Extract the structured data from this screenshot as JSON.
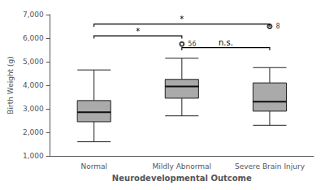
{
  "chart_data": {
    "type": "boxplot",
    "xlabel": "Neurodevelopmental Outcome",
    "ylabel": "Birth Weight (g)",
    "categories": [
      "Normal",
      "Mildly Abnormal",
      "Severe Brain Injury"
    ],
    "boxes": [
      {
        "whislo": 1600,
        "q1": 2450,
        "median": 2850,
        "q3": 3350,
        "whishi": 4650,
        "fliers": [],
        "flier_labels": []
      },
      {
        "whislo": 2700,
        "q1": 3450,
        "median": 3950,
        "q3": 4250,
        "whishi": 5150,
        "fliers": [
          5750
        ],
        "flier_labels": [
          "56"
        ]
      },
      {
        "whislo": 2300,
        "q1": 2900,
        "median": 3300,
        "q3": 4100,
        "whishi": 4750,
        "fliers": [
          6500
        ],
        "flier_labels": [
          "8"
        ]
      }
    ],
    "color": "#aaaaaa",
    "edge_color": "#222222",
    "median_color": "#111111",
    "whisker_color": "#111111",
    "background_color": "#ffffff",
    "ylim": [
      1000,
      7000
    ],
    "yticks": [
      1000,
      2000,
      3000,
      4000,
      5000,
      6000,
      7000
    ],
    "grid": false,
    "significance": [
      {
        "from": "Normal",
        "to": "Mildly Abnormal",
        "y": 6100,
        "label": "*"
      },
      {
        "from": "Normal",
        "to": "Severe Brain Injury",
        "y": 6600,
        "label": "*"
      },
      {
        "from": "Mildly Abnormal",
        "to": "Severe Brain Injury",
        "y": 5600,
        "label": "n.s."
      }
    ]
  }
}
